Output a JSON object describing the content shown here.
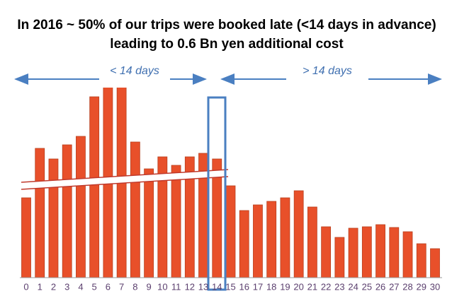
{
  "chart_data": {
    "type": "bar",
    "title": "In 2016 ~ 50% of our trips were booked late (<14 days in advance) leading to 0.6 Bn yen additional cost",
    "annotations": [
      "< 14 days",
      "> 14 days"
    ],
    "categories": [
      "0",
      "1",
      "2",
      "3",
      "4",
      "5",
      "6",
      "7",
      "8",
      "9",
      "10",
      "11",
      "12",
      "13",
      "14",
      "15",
      "16",
      "17",
      "18",
      "19",
      "20",
      "21",
      "22",
      "23",
      "24",
      "25",
      "26",
      "27",
      "28",
      "29",
      "30"
    ],
    "values": [
      113,
      183,
      168,
      188,
      200,
      256,
      279,
      276,
      192,
      154,
      171,
      159,
      171,
      176,
      168,
      130,
      95,
      103,
      108,
      113,
      123,
      100,
      72,
      57,
      70,
      72,
      75,
      71,
      65,
      48,
      41
    ],
    "color": "#e8502a",
    "ylim": [
      0,
      280
    ]
  }
}
